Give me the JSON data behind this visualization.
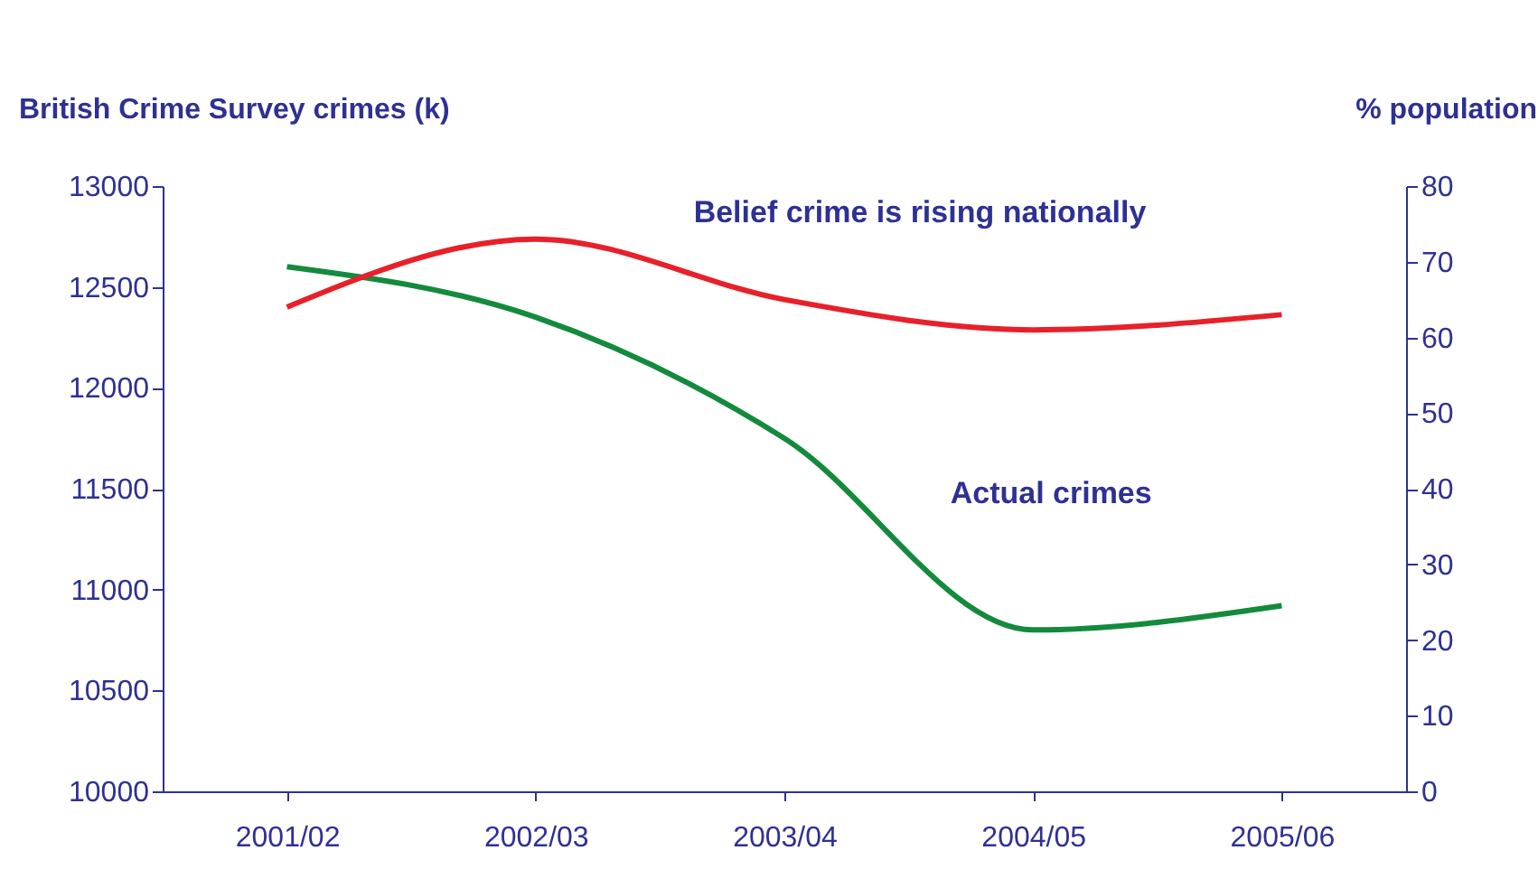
{
  "chart_data": {
    "type": "line",
    "ylabel": "British Crime Survey crimes (k)",
    "y2label": "% population",
    "categories": [
      "2001/02",
      "2002/03",
      "2003/04",
      "2004/05",
      "2005/06"
    ],
    "series": [
      {
        "name": "Actual crimes",
        "color": "#138a3c",
        "values": [
          12600,
          12350,
          11750,
          10800,
          10920
        ]
      },
      {
        "name": "Belief crime is rising nationally",
        "color": "#e8202a",
        "axis": "y2",
        "values": [
          64,
          73,
          65,
          61,
          63
        ]
      }
    ],
    "ylim": [
      10000,
      13000
    ],
    "yticks": [
      10000,
      10500,
      11000,
      11500,
      12000,
      12500,
      13000
    ],
    "y2lim": [
      0,
      80
    ],
    "y2ticks": [
      0,
      10,
      20,
      30,
      40,
      50,
      60,
      70,
      80
    ],
    "grid": false
  }
}
